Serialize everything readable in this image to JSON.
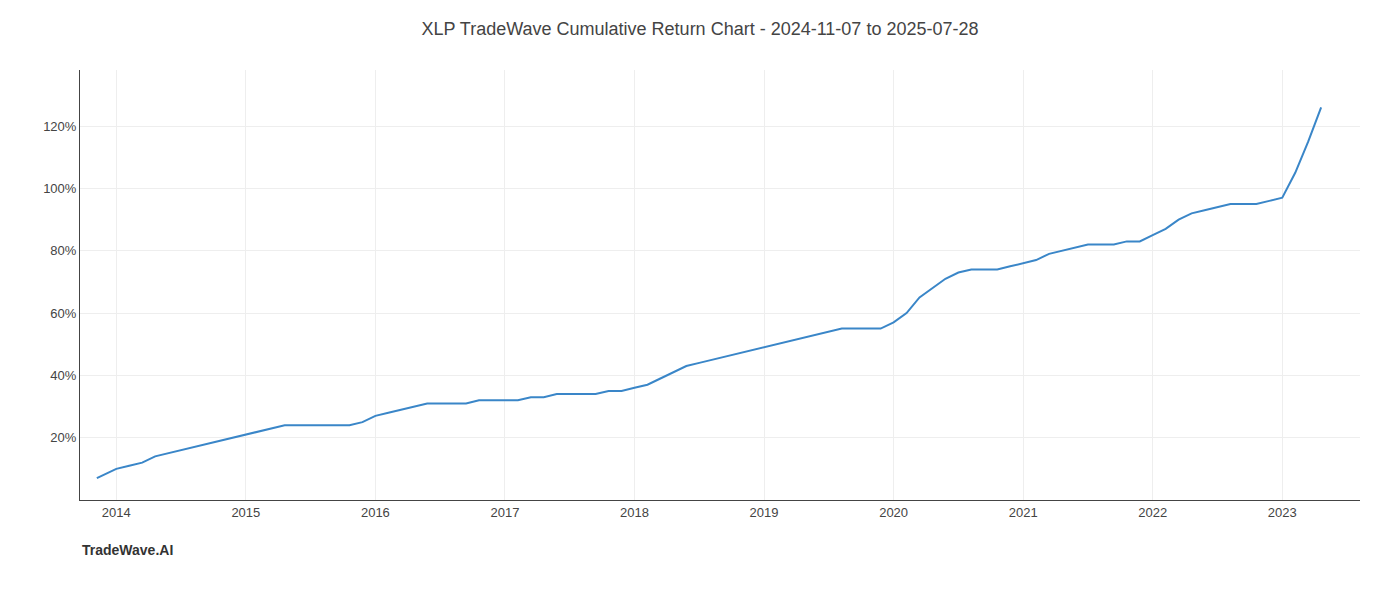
{
  "chart_data": {
    "type": "line",
    "title": "XLP TradeWave Cumulative Return Chart - 2024-11-07 to 2025-07-28",
    "annotations": [
      "TradeWave.AI"
    ],
    "color": "#3a86c8",
    "grid": true,
    "x": [
      2013.85,
      2013.9,
      2013.95,
      2014.0,
      2014.1,
      2014.2,
      2014.3,
      2014.4,
      2014.5,
      2014.6,
      2014.7,
      2014.8,
      2014.9,
      2015.0,
      2015.1,
      2015.2,
      2015.3,
      2015.4,
      2015.5,
      2015.6,
      2015.7,
      2015.8,
      2015.9,
      2016.0,
      2016.1,
      2016.2,
      2016.3,
      2016.4,
      2016.5,
      2016.6,
      2016.7,
      2016.8,
      2016.9,
      2017.0,
      2017.1,
      2017.2,
      2017.3,
      2017.4,
      2017.5,
      2017.6,
      2017.7,
      2017.8,
      2017.9,
      2018.0,
      2018.1,
      2018.2,
      2018.3,
      2018.4,
      2018.5,
      2018.6,
      2018.7,
      2018.8,
      2018.9,
      2019.0,
      2019.1,
      2019.2,
      2019.3,
      2019.4,
      2019.5,
      2019.6,
      2019.7,
      2019.8,
      2019.9,
      2020.0,
      2020.1,
      2020.2,
      2020.3,
      2020.4,
      2020.5,
      2020.6,
      2020.7,
      2020.8,
      2020.9,
      2021.0,
      2021.1,
      2021.2,
      2021.3,
      2021.4,
      2021.5,
      2021.6,
      2021.7,
      2021.8,
      2021.9,
      2022.0,
      2022.1,
      2022.2,
      2022.3,
      2022.4,
      2022.5,
      2022.6,
      2022.7,
      2022.8,
      2022.9,
      2023.0,
      2023.1,
      2023.2,
      2023.3
    ],
    "values": [
      7,
      8,
      9,
      10,
      11,
      12,
      14,
      15,
      16,
      17,
      18,
      19,
      20,
      21,
      22,
      23,
      24,
      24,
      24,
      24,
      24,
      24,
      25,
      27,
      28,
      29,
      30,
      31,
      31,
      31,
      31,
      32,
      32,
      32,
      32,
      33,
      33,
      34,
      34,
      34,
      34,
      35,
      35,
      36,
      37,
      39,
      41,
      43,
      44,
      45,
      46,
      47,
      48,
      49,
      50,
      51,
      52,
      53,
      54,
      55,
      55,
      55,
      55,
      57,
      60,
      65,
      68,
      71,
      73,
      74,
      74,
      74,
      75,
      76,
      77,
      79,
      80,
      81,
      82,
      82,
      82,
      83,
      83,
      85,
      87,
      90,
      92,
      93,
      94,
      95,
      95,
      95,
      96,
      97,
      105,
      115,
      126
    ],
    "xlim": [
      2013.72,
      2023.6
    ],
    "ylim": [
      0,
      138
    ],
    "xticks": [
      2014,
      2015,
      2016,
      2017,
      2018,
      2019,
      2020,
      2021,
      2022,
      2023
    ],
    "yticks": [
      {
        "value": 20,
        "label": "20%"
      },
      {
        "value": 40,
        "label": "40%"
      },
      {
        "value": 60,
        "label": "60%"
      },
      {
        "value": 80,
        "label": "80%"
      },
      {
        "value": 100,
        "label": "100%"
      },
      {
        "value": 120,
        "label": "120%"
      }
    ]
  }
}
